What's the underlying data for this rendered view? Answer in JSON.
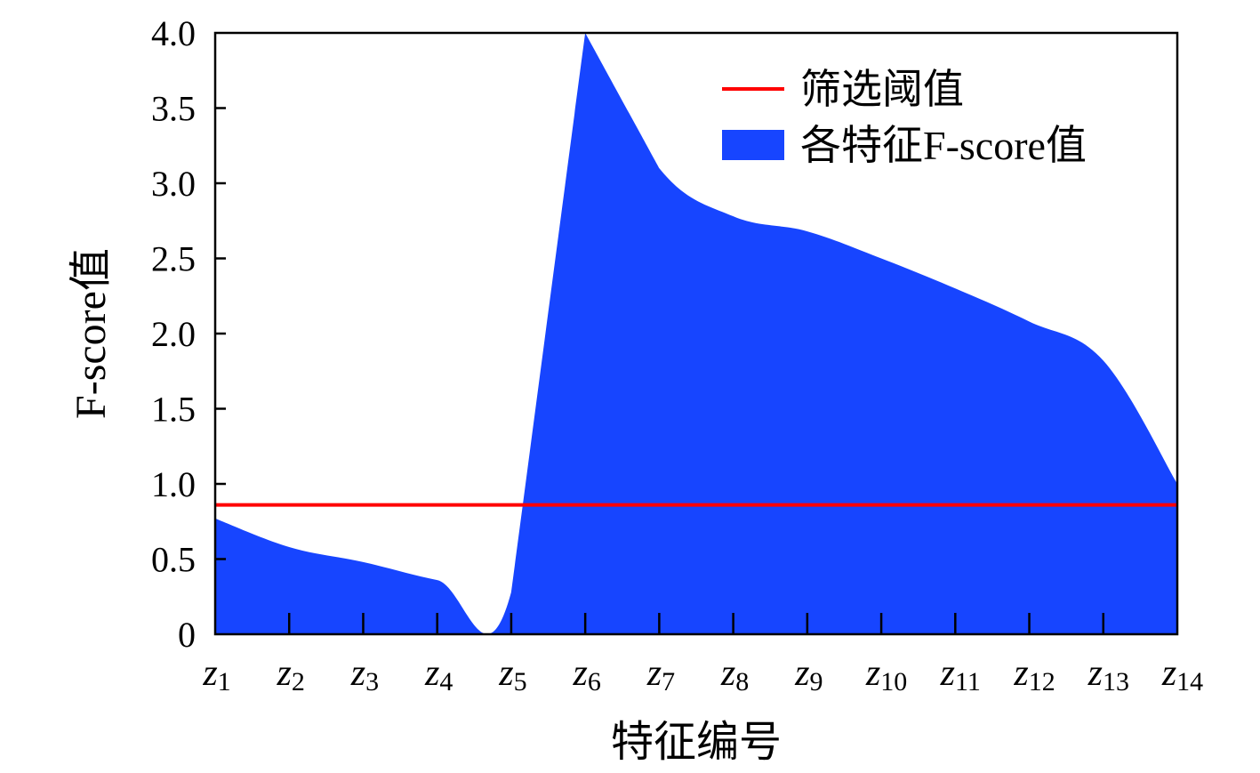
{
  "chart_data": {
    "type": "area",
    "xlabel": "特征编号",
    "ylabel": "F-score值",
    "ylim": [
      0,
      4.0
    ],
    "yticks": [
      "0",
      "0.5",
      "1.0",
      "1.5",
      "2.0",
      "2.5",
      "3.0",
      "3.5",
      "4.0"
    ],
    "ytick_values": [
      0,
      0.5,
      1.0,
      1.5,
      2.0,
      2.5,
      3.0,
      3.5,
      4.0
    ],
    "categories": [
      {
        "base": "z",
        "sub": "1"
      },
      {
        "base": "z",
        "sub": "2"
      },
      {
        "base": "z",
        "sub": "3"
      },
      {
        "base": "z",
        "sub": "4"
      },
      {
        "base": "z",
        "sub": "5"
      },
      {
        "base": "z",
        "sub": "6"
      },
      {
        "base": "z",
        "sub": "7"
      },
      {
        "base": "z",
        "sub": "8"
      },
      {
        "base": "z",
        "sub": "9"
      },
      {
        "base": "z",
        "sub": "10"
      },
      {
        "base": "z",
        "sub": "11"
      },
      {
        "base": "z",
        "sub": "12"
      },
      {
        "base": "z",
        "sub": "13"
      },
      {
        "base": "z",
        "sub": "14"
      }
    ],
    "series": [
      {
        "name": "各特征F-score值",
        "color": "#1745ff",
        "values": [
          0.77,
          0.58,
          0.48,
          0.36,
          0.28,
          4.0,
          3.1,
          2.78,
          2.68,
          2.5,
          2.3,
          2.08,
          1.82,
          1.0
        ]
      }
    ],
    "threshold": {
      "name": "筛选阈值",
      "value": 0.86,
      "color": "#ff0000"
    },
    "legend_position": "top-right",
    "grid": false
  }
}
